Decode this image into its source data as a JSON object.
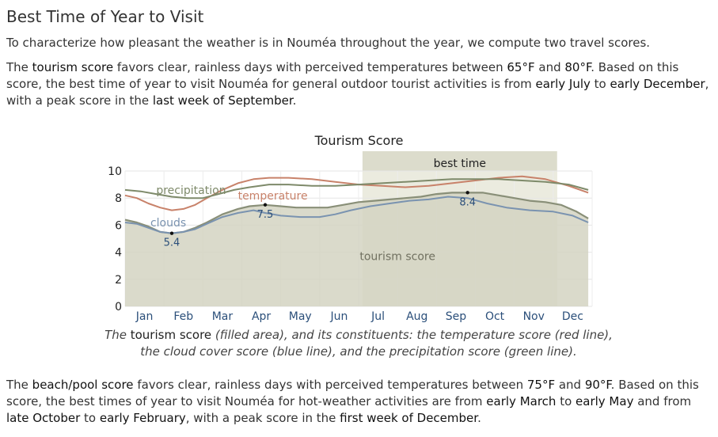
{
  "page": {
    "title": "Best Time of Year to Visit",
    "intro": "To characterize how pleasant the weather is in Nouméa throughout the year, we compute two travel scores.",
    "tourism_paragraph": {
      "t1": "The ",
      "b1": "tourism score",
      "t2": " favors clear, rainless days with perceived temperatures between ",
      "b2": "65°F",
      "t3": " and ",
      "b3": "80°F",
      "t4": ". Based on this score, the best time of year to visit Nouméa for general outdoor tourist activities is from ",
      "b4": "early July",
      "t5": " to ",
      "b5": "early December",
      "t6": ", with a peak score in the ",
      "b6": "last week of September",
      "t7": "."
    },
    "caption": {
      "t1": "The ",
      "b1": "tourism score",
      "t2": " (filled area), and its constituents: the temperature score (red line), the cloud cover score (blue line), and the precipitation score (green line)."
    },
    "beach_paragraph": {
      "t1": "The ",
      "b1": "beach/pool score",
      "t2": " favors clear, rainless days with perceived temperatures between ",
      "b2": "75°F",
      "t3": " and ",
      "b3": "90°F",
      "t4": ". Based on this score, the best times of year to visit Nouméa for hot-weather activities are from ",
      "b4": "early March",
      "t5": " to ",
      "b5": "early May",
      "t6": " and from ",
      "b6": "late October",
      "t7": " to ",
      "b7": "early February",
      "t8": ", with a peak score in the ",
      "b8": "first week of December",
      "t9": "."
    }
  },
  "chart_data": {
    "type": "area",
    "title": "Tourism Score",
    "x_unit": "month (fractional, 0 = Jan 1, 12 = Dec 31)",
    "categories": [
      "Jan",
      "Feb",
      "Mar",
      "Apr",
      "May",
      "Jun",
      "Jul",
      "Aug",
      "Sep",
      "Oct",
      "Nov",
      "Dec"
    ],
    "ylim": [
      0,
      10
    ],
    "yticks": [
      "0",
      "2",
      "4",
      "6",
      "8",
      "10"
    ],
    "grid": true,
    "best_time": {
      "label": "best time",
      "start": 6.1,
      "end": 11.1
    },
    "series": [
      {
        "name": "tourism score",
        "role": "filled area",
        "color": "#898f78",
        "fill": "#d4d4c2",
        "points": [
          [
            0,
            6.4
          ],
          [
            0.3,
            6.2
          ],
          [
            0.6,
            5.9
          ],
          [
            0.9,
            5.5
          ],
          [
            1.2,
            5.4
          ],
          [
            1.5,
            5.5
          ],
          [
            1.8,
            5.8
          ],
          [
            2.1,
            6.2
          ],
          [
            2.5,
            6.8
          ],
          [
            2.9,
            7.2
          ],
          [
            3.2,
            7.4
          ],
          [
            3.6,
            7.5
          ],
          [
            4.0,
            7.4
          ],
          [
            4.4,
            7.3
          ],
          [
            4.8,
            7.3
          ],
          [
            5.2,
            7.3
          ],
          [
            5.6,
            7.5
          ],
          [
            6.0,
            7.7
          ],
          [
            6.4,
            7.8
          ],
          [
            6.8,
            7.9
          ],
          [
            7.2,
            8.0
          ],
          [
            7.6,
            8.1
          ],
          [
            8.0,
            8.3
          ],
          [
            8.4,
            8.4
          ],
          [
            8.8,
            8.4
          ],
          [
            9.2,
            8.4
          ],
          [
            9.6,
            8.2
          ],
          [
            10.0,
            8.0
          ],
          [
            10.4,
            7.8
          ],
          [
            10.8,
            7.7
          ],
          [
            11.2,
            7.5
          ],
          [
            11.6,
            7.0
          ],
          [
            11.9,
            6.5
          ]
        ],
        "annotations": [
          {
            "x": 1.2,
            "y": 5.4,
            "label": "5.4"
          },
          {
            "x": 3.6,
            "y": 7.5,
            "label": "7.5"
          },
          {
            "x": 8.8,
            "y": 8.4,
            "label": "8.4"
          }
        ],
        "inline_label": "tourism score"
      },
      {
        "name": "temperature",
        "color": "#c8826a",
        "points": [
          [
            0,
            8.2
          ],
          [
            0.3,
            8.0
          ],
          [
            0.6,
            7.6
          ],
          [
            0.9,
            7.3
          ],
          [
            1.2,
            7.1
          ],
          [
            1.5,
            7.2
          ],
          [
            1.8,
            7.5
          ],
          [
            2.1,
            8.0
          ],
          [
            2.5,
            8.6
          ],
          [
            2.9,
            9.1
          ],
          [
            3.3,
            9.4
          ],
          [
            3.7,
            9.5
          ],
          [
            4.2,
            9.5
          ],
          [
            4.8,
            9.4
          ],
          [
            5.4,
            9.2
          ],
          [
            6.0,
            9.0
          ],
          [
            6.6,
            8.9
          ],
          [
            7.2,
            8.8
          ],
          [
            7.8,
            8.9
          ],
          [
            8.4,
            9.1
          ],
          [
            9.0,
            9.3
          ],
          [
            9.6,
            9.5
          ],
          [
            10.2,
            9.6
          ],
          [
            10.8,
            9.4
          ],
          [
            11.4,
            8.9
          ],
          [
            11.9,
            8.4
          ]
        ],
        "inline_label": "temperature"
      },
      {
        "name": "clouds",
        "color": "#7a93b0",
        "points": [
          [
            0,
            6.2
          ],
          [
            0.3,
            6.1
          ],
          [
            0.6,
            5.8
          ],
          [
            0.9,
            5.5
          ],
          [
            1.2,
            5.4
          ],
          [
            1.5,
            5.5
          ],
          [
            1.8,
            5.7
          ],
          [
            2.1,
            6.1
          ],
          [
            2.5,
            6.6
          ],
          [
            2.9,
            6.9
          ],
          [
            3.3,
            7.1
          ],
          [
            3.6,
            6.9
          ],
          [
            4.0,
            6.7
          ],
          [
            4.5,
            6.6
          ],
          [
            5.0,
            6.6
          ],
          [
            5.4,
            6.8
          ],
          [
            5.8,
            7.1
          ],
          [
            6.3,
            7.4
          ],
          [
            6.8,
            7.6
          ],
          [
            7.3,
            7.8
          ],
          [
            7.8,
            7.9
          ],
          [
            8.3,
            8.1
          ],
          [
            8.8,
            8.0
          ],
          [
            9.3,
            7.6
          ],
          [
            9.8,
            7.3
          ],
          [
            10.4,
            7.1
          ],
          [
            11.0,
            7.0
          ],
          [
            11.5,
            6.7
          ],
          [
            11.9,
            6.2
          ]
        ],
        "inline_label": "clouds"
      },
      {
        "name": "precipitation",
        "color": "#7e8a6a",
        "points": [
          [
            0,
            8.6
          ],
          [
            0.4,
            8.5
          ],
          [
            0.8,
            8.3
          ],
          [
            1.2,
            8.1
          ],
          [
            1.6,
            8.0
          ],
          [
            2.0,
            8.0
          ],
          [
            2.4,
            8.3
          ],
          [
            2.8,
            8.6
          ],
          [
            3.2,
            8.8
          ],
          [
            3.7,
            9.0
          ],
          [
            4.2,
            9.0
          ],
          [
            4.8,
            8.9
          ],
          [
            5.4,
            8.9
          ],
          [
            6.0,
            9.0
          ],
          [
            6.6,
            9.1
          ],
          [
            7.2,
            9.2
          ],
          [
            7.8,
            9.3
          ],
          [
            8.4,
            9.4
          ],
          [
            9.0,
            9.4
          ],
          [
            9.6,
            9.4
          ],
          [
            10.2,
            9.3
          ],
          [
            10.8,
            9.2
          ],
          [
            11.4,
            9.0
          ],
          [
            11.9,
            8.6
          ]
        ],
        "inline_label": "precipitation"
      }
    ]
  }
}
